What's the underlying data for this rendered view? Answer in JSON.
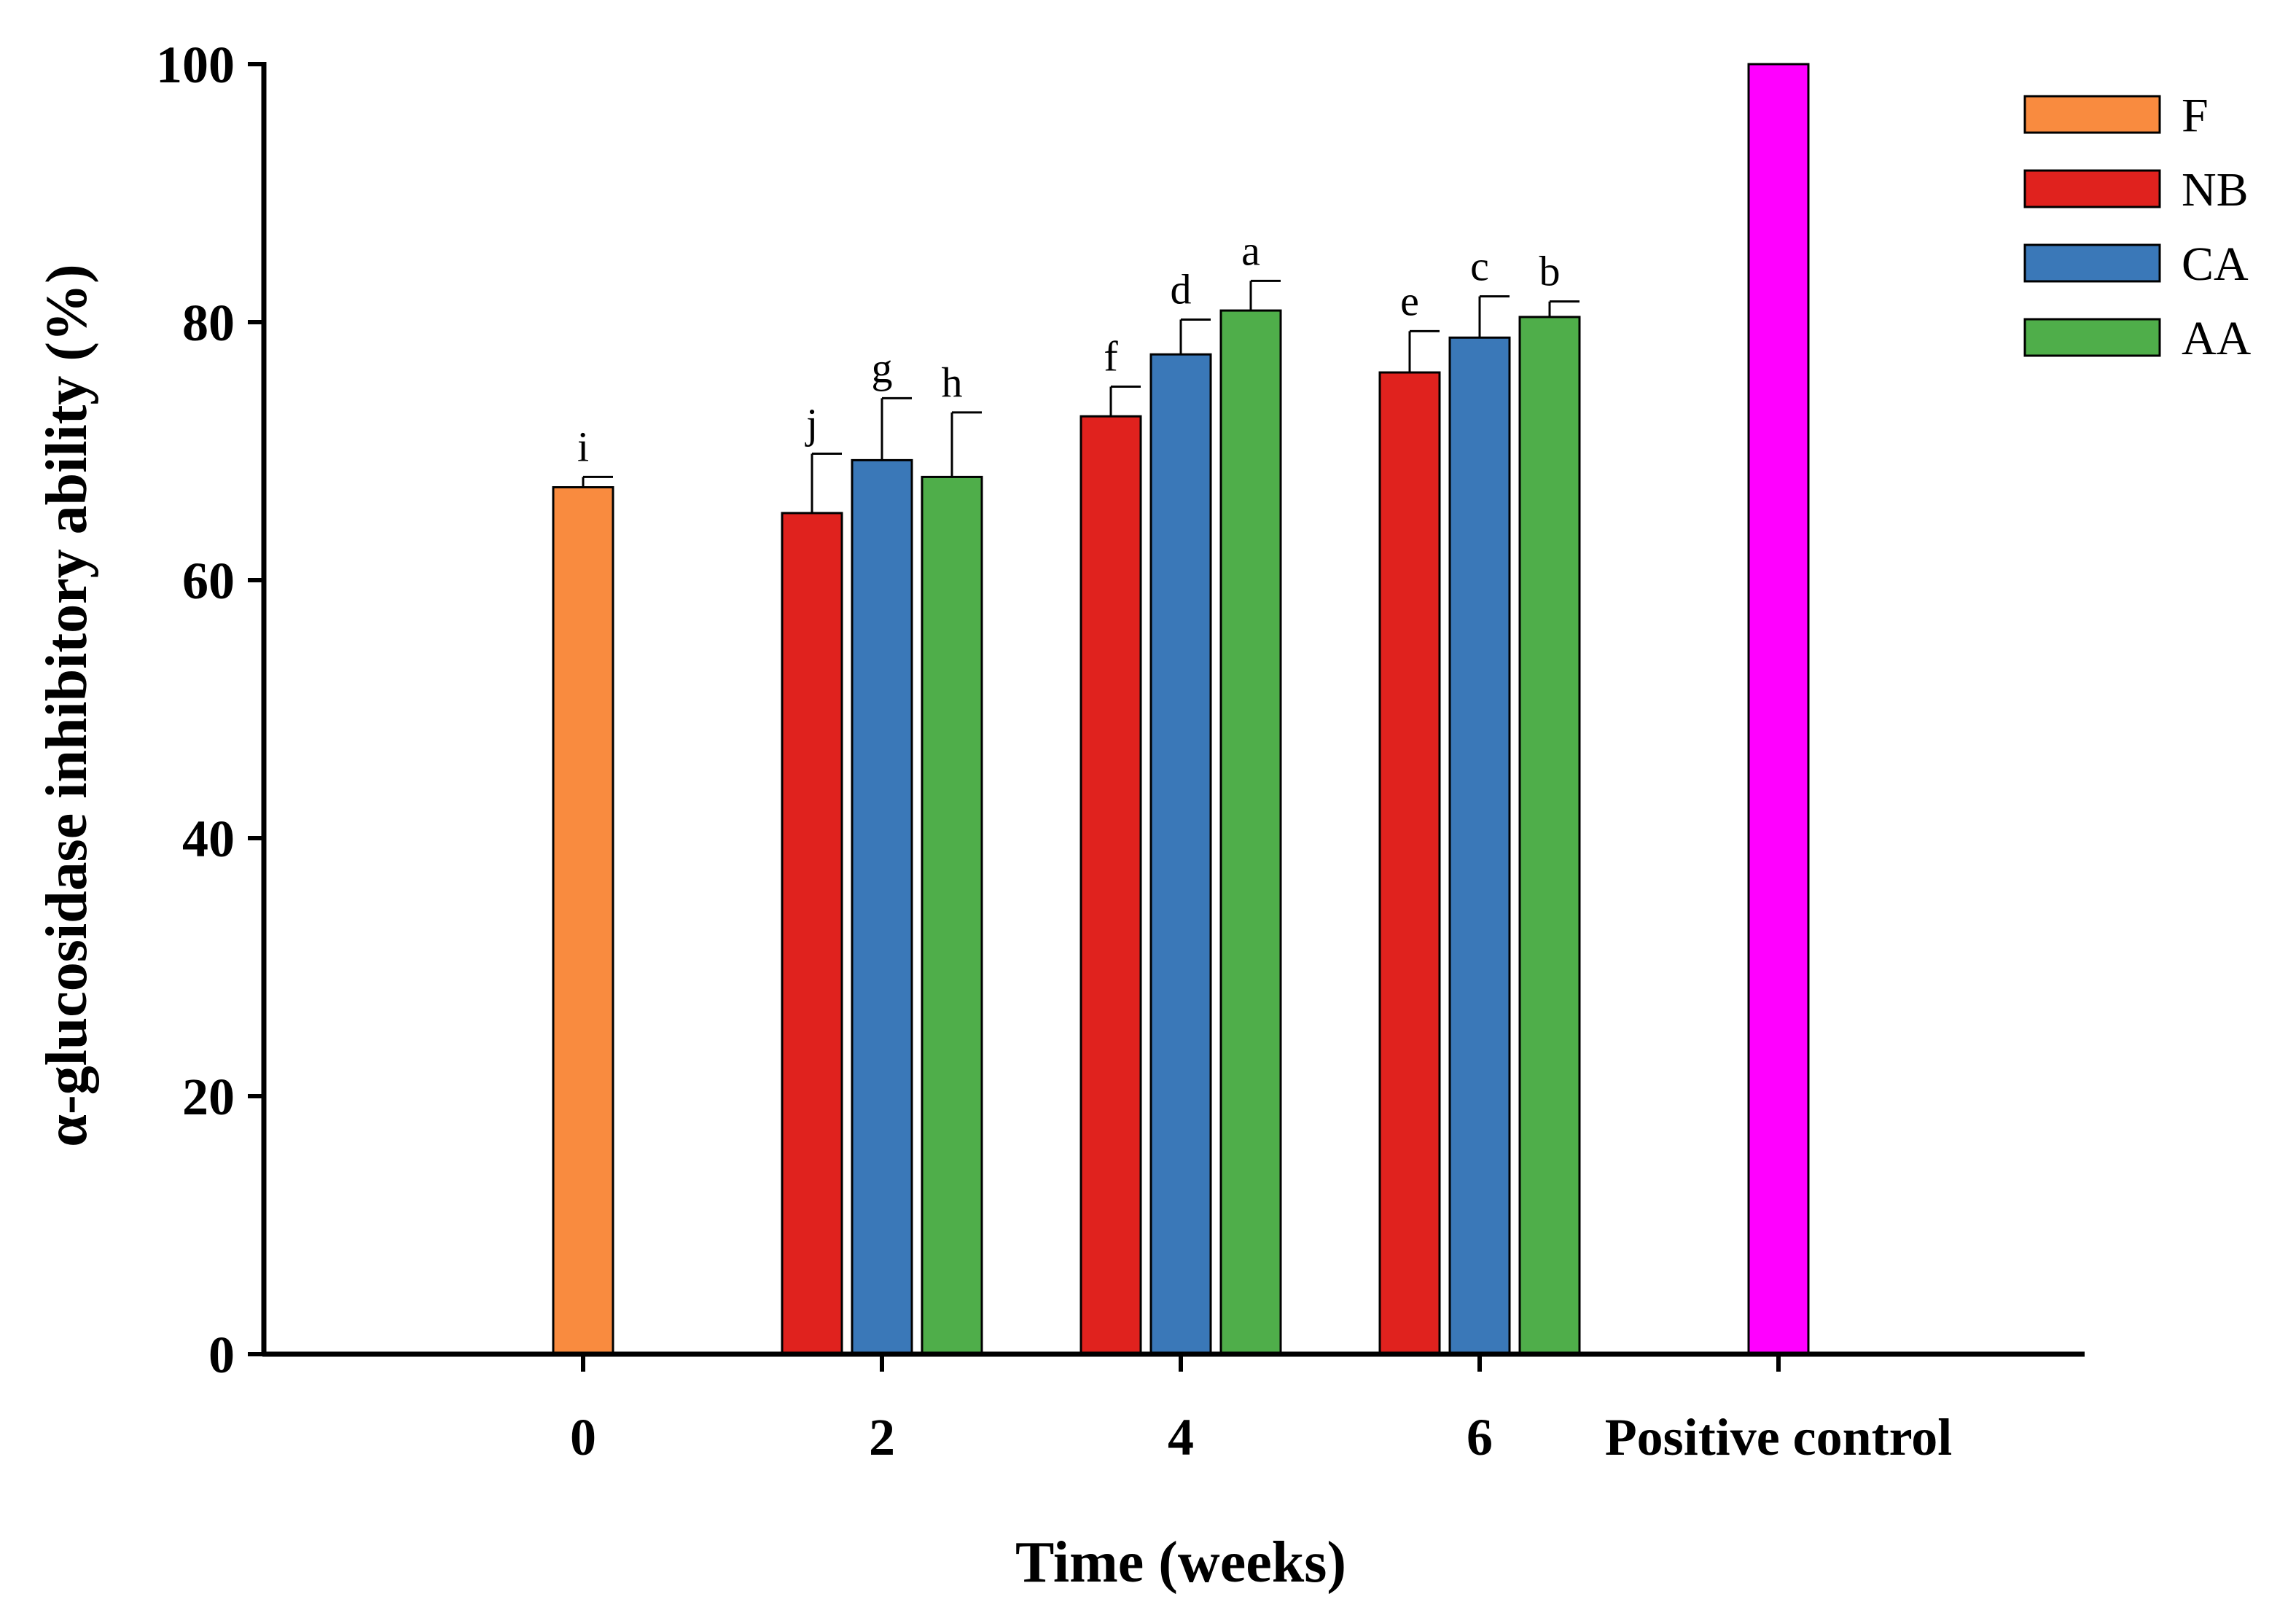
{
  "chart_data": {
    "type": "bar",
    "xlabel": "Time (weeks)",
    "ylabel": "α-glucosidase inhibitory ability (%)",
    "ylim": [
      0,
      100
    ],
    "yticks": [
      0,
      20,
      40,
      60,
      80,
      100
    ],
    "grid": false,
    "legend_position": "top-right",
    "categories": [
      "0",
      "2",
      "4",
      "6",
      "Positive control"
    ],
    "legend": [
      {
        "name": "F",
        "color": "#F98B3F"
      },
      {
        "name": "NB",
        "color": "#E0221E"
      },
      {
        "name": "CA",
        "color": "#3A78B8"
      },
      {
        "name": "AA",
        "color": "#4FAE4A"
      }
    ],
    "bars": [
      {
        "category": "0",
        "series": "F",
        "value": 67.2,
        "error": 0.8,
        "label": "i",
        "color": "#F98B3F"
      },
      {
        "category": "2",
        "series": "NB",
        "value": 65.2,
        "error": 4.6,
        "label": "j",
        "color": "#E0221E"
      },
      {
        "category": "2",
        "series": "CA",
        "value": 69.3,
        "error": 4.8,
        "label": "g",
        "color": "#3A78B8"
      },
      {
        "category": "2",
        "series": "AA",
        "value": 68.0,
        "error": 5.0,
        "label": "h",
        "color": "#4FAE4A"
      },
      {
        "category": "4",
        "series": "NB",
        "value": 72.7,
        "error": 2.3,
        "label": "f",
        "color": "#E0221E"
      },
      {
        "category": "4",
        "series": "CA",
        "value": 77.5,
        "error": 2.7,
        "label": "d",
        "color": "#3A78B8"
      },
      {
        "category": "4",
        "series": "AA",
        "value": 80.9,
        "error": 2.3,
        "label": "a",
        "color": "#4FAE4A"
      },
      {
        "category": "6",
        "series": "NB",
        "value": 76.1,
        "error": 3.2,
        "label": "e",
        "color": "#E0221E"
      },
      {
        "category": "6",
        "series": "CA",
        "value": 78.8,
        "error": 3.2,
        "label": "c",
        "color": "#3A78B8"
      },
      {
        "category": "6",
        "series": "AA",
        "value": 80.4,
        "error": 1.2,
        "label": "b",
        "color": "#4FAE4A"
      },
      {
        "category": "Positive control",
        "series": "",
        "value": 100,
        "error": 0,
        "label": "",
        "color": "#FF00FF"
      }
    ]
  }
}
